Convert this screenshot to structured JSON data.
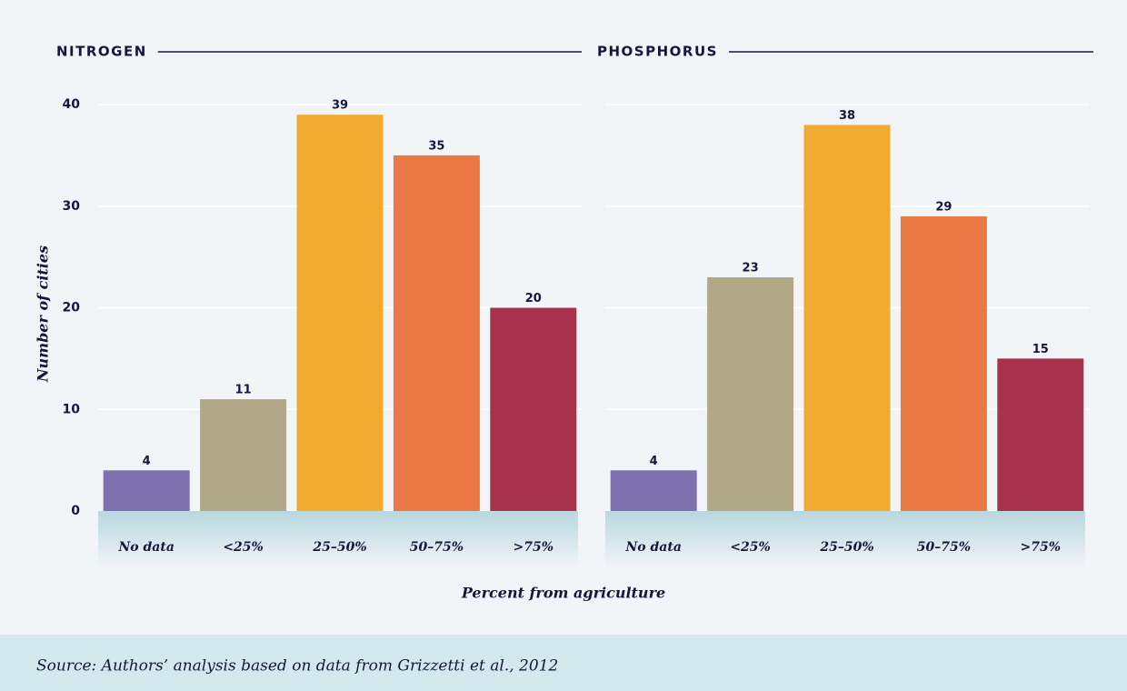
{
  "chart_data": [
    {
      "type": "bar",
      "title": "NITROGEN",
      "categories": [
        "No data",
        "<25%",
        "25–50%",
        "50–75%",
        ">75%"
      ],
      "values": [
        4,
        11,
        39,
        35,
        20
      ],
      "colors": [
        "#7f70b0",
        "#b1a887",
        "#f0ab30",
        "#ea7845",
        "#a8324b"
      ],
      "ylim": [
        0,
        40
      ],
      "yticks": [
        0,
        10,
        20,
        30,
        40
      ],
      "grid": true,
      "show_ytick_labels": true
    },
    {
      "type": "bar",
      "title": "PHOSPHORUS",
      "categories": [
        "No data",
        "<25%",
        "25–50%",
        "50–75%",
        ">75%"
      ],
      "values": [
        4,
        23,
        38,
        29,
        15
      ],
      "colors": [
        "#7f70b0",
        "#b1a887",
        "#f0ab30",
        "#ea7845",
        "#a8324b"
      ],
      "ylim": [
        0,
        40
      ],
      "yticks": [
        0,
        10,
        20,
        30,
        40
      ],
      "grid": true,
      "show_ytick_labels": false
    }
  ],
  "y_label": "Number of cities",
  "x_label": "Percent from agriculture",
  "source": "Source: Authors’ analysis based on data from Grizzetti et al., 2012"
}
